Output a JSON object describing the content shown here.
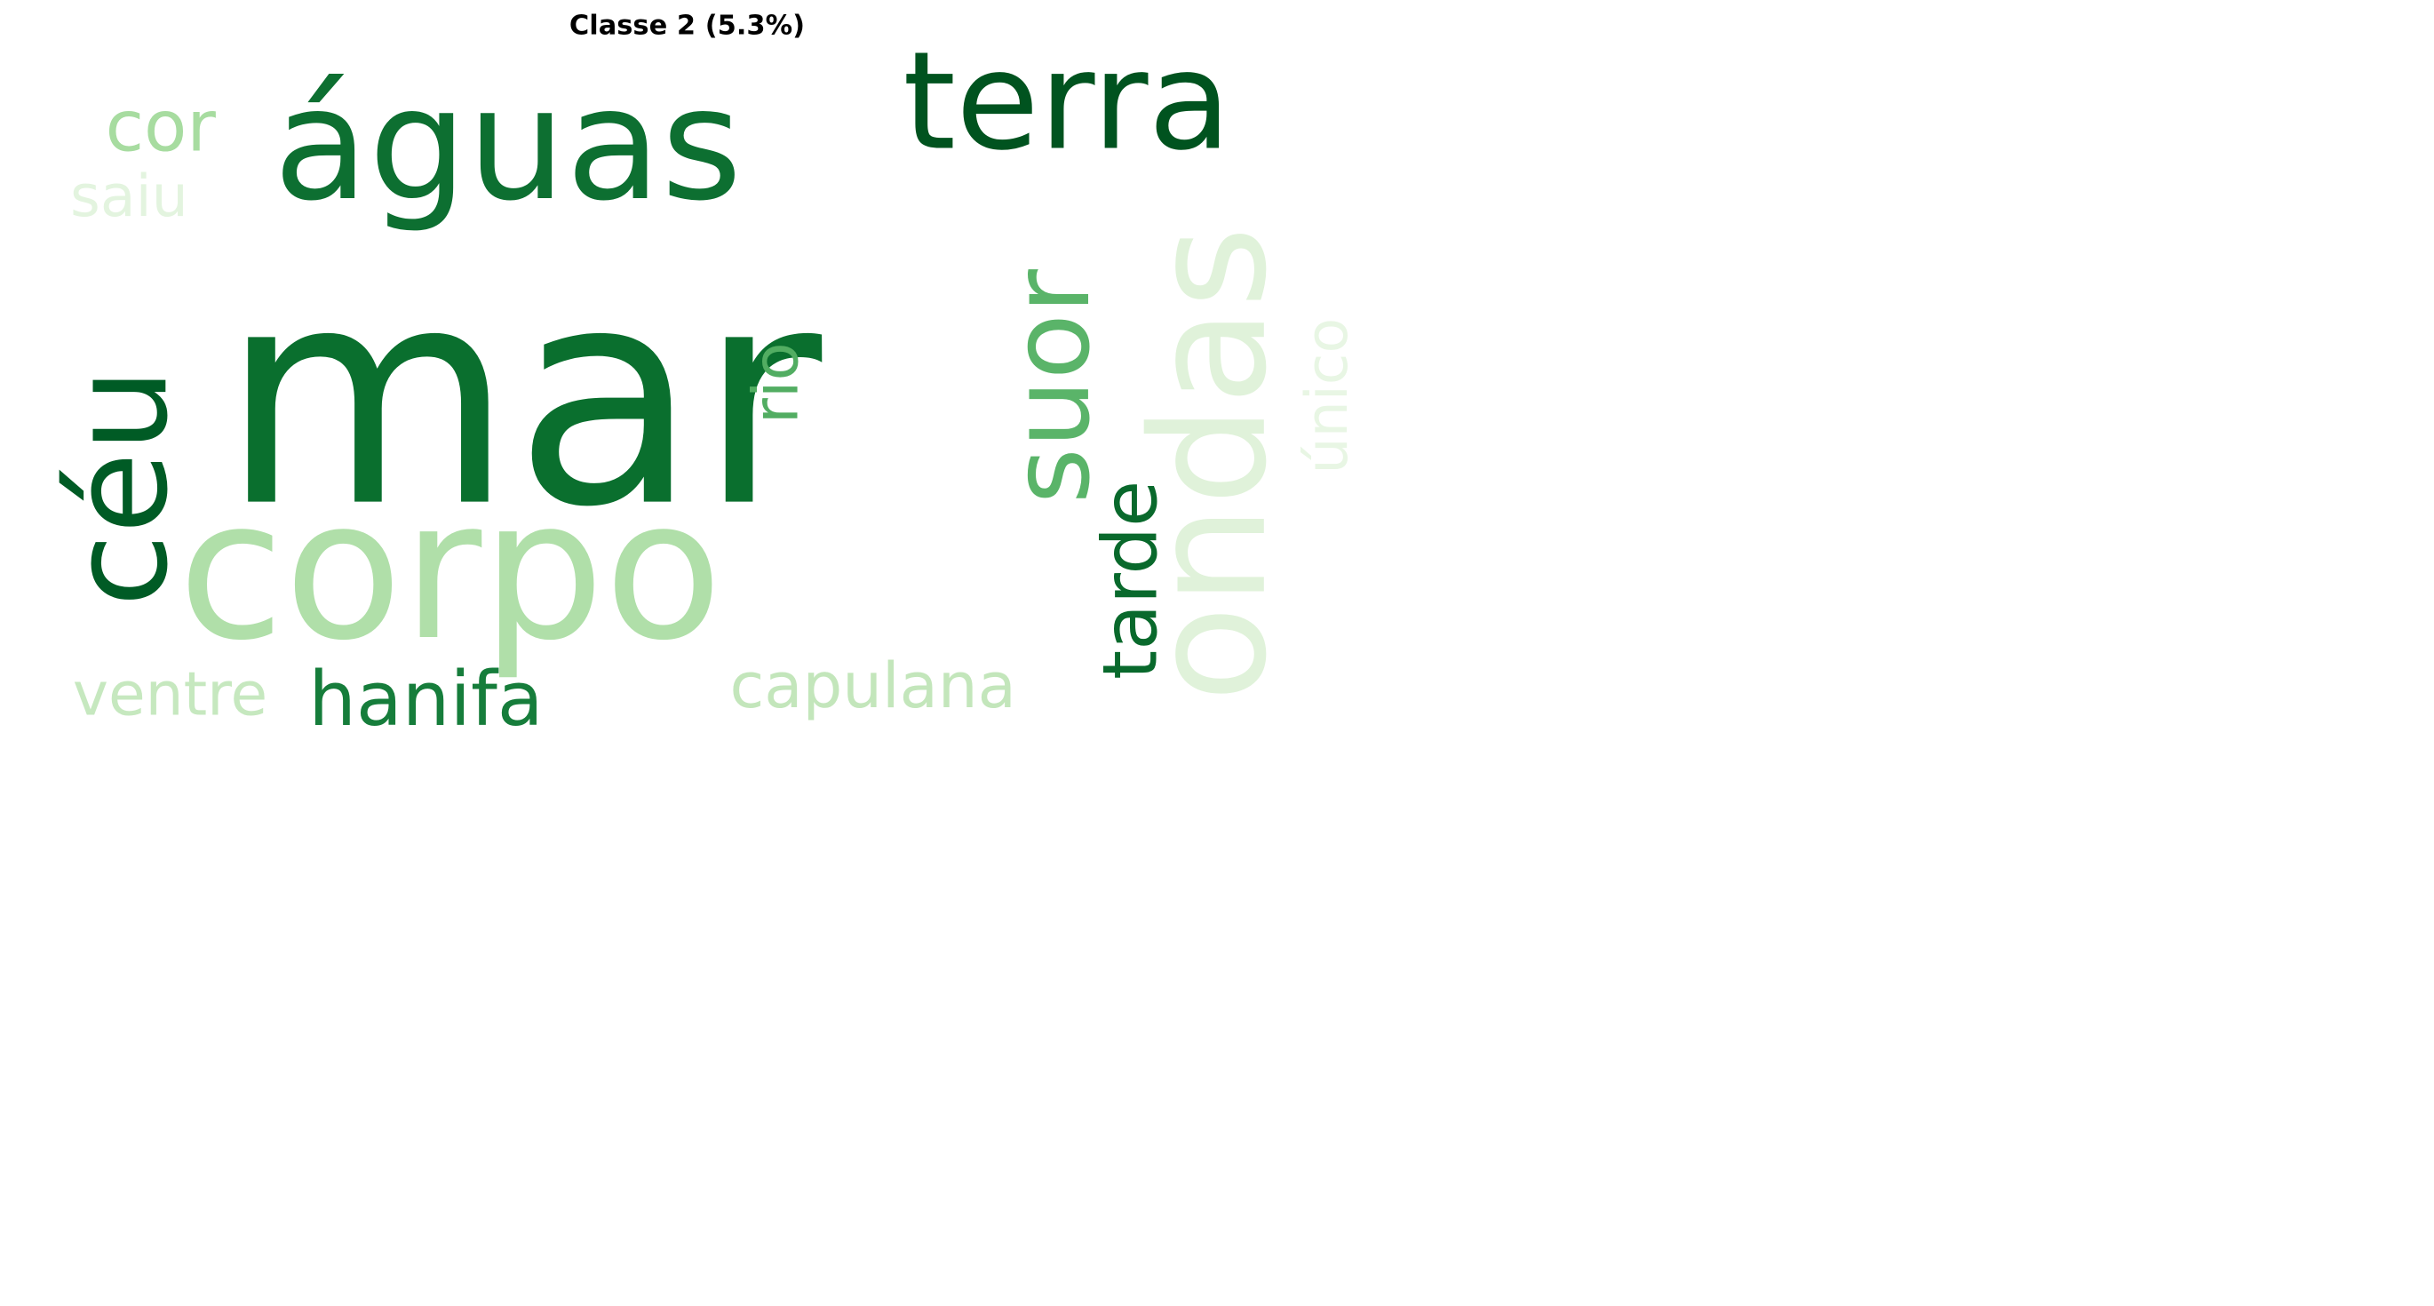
{
  "chart_data": {
    "type": "wordcloud",
    "title": "Classe 2 (5.3%)",
    "colormap": "Greens",
    "words": [
      {
        "text": "mar",
        "color": "#0a6f2e"
      },
      {
        "text": "corpo",
        "color": "#b0dfa9"
      },
      {
        "text": "águas",
        "color": "#0d6f31"
      },
      {
        "text": "terra",
        "color": "#00531f"
      },
      {
        "text": "céu",
        "color": "#005b25"
      },
      {
        "text": "ondas",
        "color": "#e0f2da"
      },
      {
        "text": "suor",
        "color": "#5ab469"
      },
      {
        "text": "hanifa",
        "color": "#167d3b"
      },
      {
        "text": "tarde",
        "color": "#09692c"
      },
      {
        "text": "capulana",
        "color": "#c3e6bb"
      },
      {
        "text": "ventre",
        "color": "#c6e8bf"
      },
      {
        "text": "cor",
        "color": "#a7dca0"
      },
      {
        "text": "saiu",
        "color": "#e3f4df"
      },
      {
        "text": "rio",
        "color": "#52ad62"
      },
      {
        "text": "único",
        "color": "#e8f6e4"
      }
    ]
  }
}
